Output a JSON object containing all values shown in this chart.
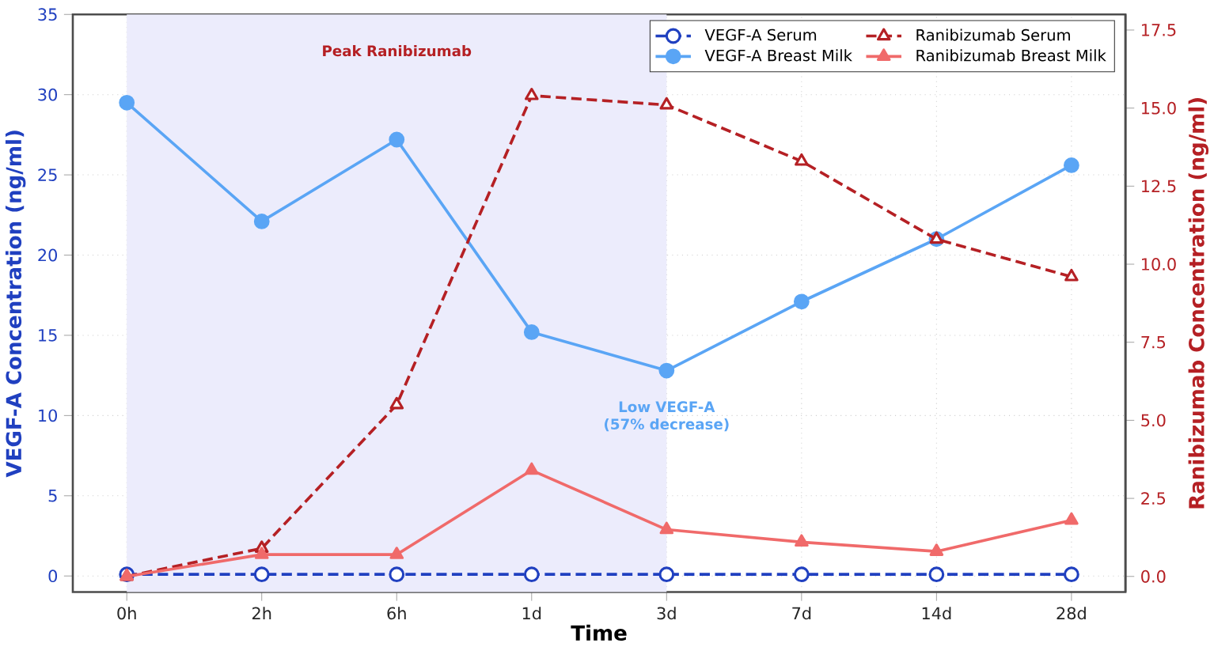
{
  "chart_data": {
    "type": "line",
    "xlabel": "Time",
    "ylabel": "VEGF-A Concentration (ng/ml)",
    "y2label": "Ranibizumab Concentration (ng/ml)",
    "categories": [
      "0h",
      "2h",
      "6h",
      "1d",
      "3d",
      "7d",
      "14d",
      "28d"
    ],
    "series": [
      {
        "name": "VEGF-A Serum",
        "color": "#2040c0",
        "values": [
          0.1,
          0.1,
          0.1,
          0.1,
          0.1,
          0.1,
          0.1,
          0.1
        ],
        "marker": "circle",
        "line_style": "dashed"
      },
      {
        "name": "VEGF-A Breast Milk",
        "color": "#5aa5f5",
        "values": [
          29.5,
          22.1,
          27.2,
          15.2,
          12.8,
          17.1,
          21.0,
          25.6
        ],
        "marker": "circle",
        "line_style": "solid"
      },
      {
        "name": "Ranibizumab Serum",
        "color": "#b52024",
        "axis": "y2",
        "values": [
          0,
          0.9,
          5.5,
          15.4,
          15.1,
          13.3,
          10.8,
          9.6
        ],
        "marker": "triangle",
        "line_style": "dashed"
      },
      {
        "name": "Ranibizumab Breast Milk",
        "color": "#f06a6a",
        "axis": "y2",
        "values": [
          0,
          0.7,
          0.7,
          3.4,
          1.5,
          1.1,
          0.8,
          1.8
        ],
        "marker": "triangle",
        "line_style": "solid"
      }
    ],
    "ylim": [
      -1,
      35
    ],
    "yticks": [
      0,
      5,
      10,
      15,
      20,
      25,
      30,
      35
    ],
    "y2lim": [
      -0.5,
      18
    ],
    "y2ticks": [
      {
        "value": 0,
        "label": "0.0"
      },
      {
        "value": 2.5,
        "label": "2.5"
      },
      {
        "value": 5,
        "label": "5.0"
      },
      {
        "value": 7.5,
        "label": "7.5"
      },
      {
        "value": 10,
        "label": "10.0"
      },
      {
        "value": 12.5,
        "label": "12.5"
      },
      {
        "value": 15,
        "label": "15.0"
      },
      {
        "value": 17.5,
        "label": "17.5"
      }
    ],
    "bands": [
      {
        "axis": "x",
        "from": "0h",
        "to": "3d",
        "label": "Peak Ranibizumab",
        "color": "#ececfc"
      }
    ],
    "annotations": [
      {
        "text": "Low VEGF-A (57% decrease)",
        "x": "3d",
        "y": 12.8
      }
    ],
    "grid": true,
    "legend": "top right"
  }
}
